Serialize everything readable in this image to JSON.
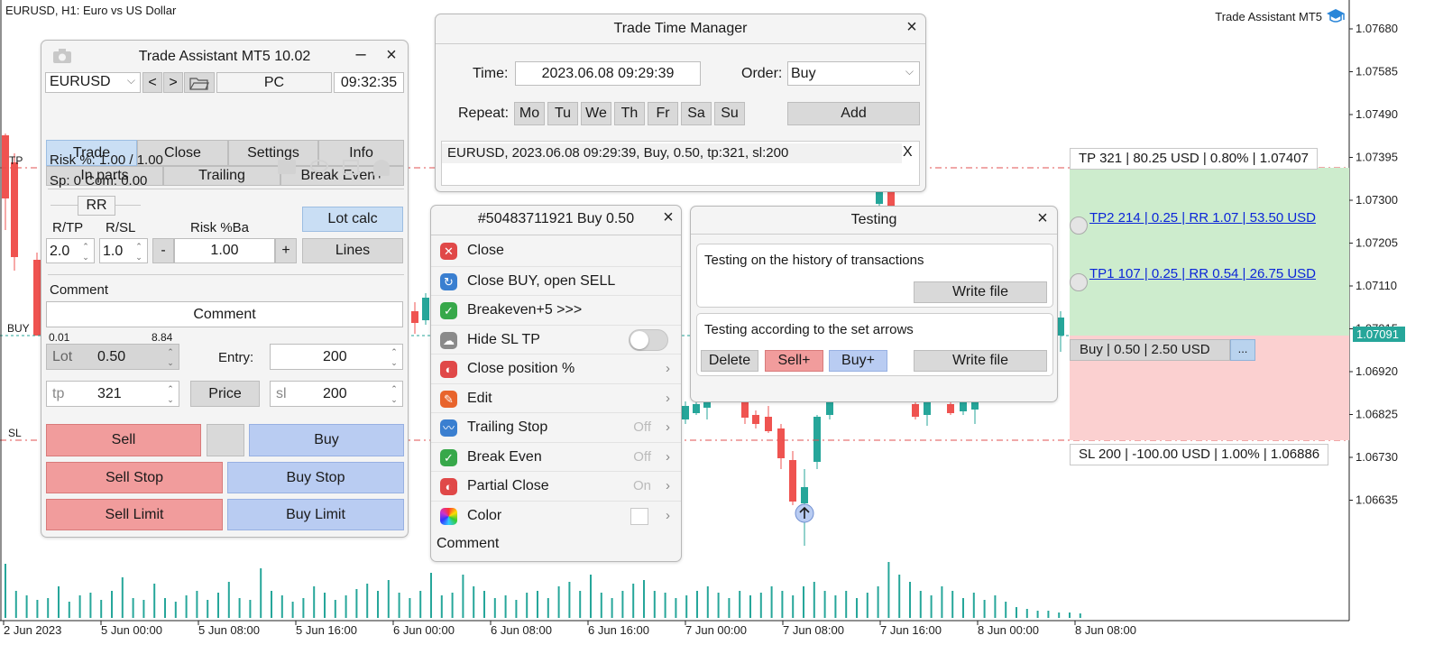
{
  "chart": {
    "symbol_title": "EURUSD, H1:  Euro vs US Dollar",
    "brand": "Trade Assistant MT5",
    "current_price": "1.07091",
    "tp_marker": "TP",
    "buy_marker": "BUY",
    "sl_marker": "SL",
    "price_labels": [
      "1.07680",
      "1.07585",
      "1.07490",
      "1.07395",
      "1.07300",
      "1.07205",
      "1.07110",
      "1.07015",
      "1.06920",
      "1.06825",
      "1.06730",
      "1.06635"
    ],
    "time_labels": [
      "2 Jun 2023",
      "5 Jun 00:00",
      "5 Jun 08:00",
      "5 Jun 16:00",
      "6 Jun 00:00",
      "6 Jun 08:00",
      "6 Jun 16:00",
      "7 Jun 00:00",
      "7 Jun 08:00",
      "7 Jun 16:00",
      "8 Jun 00:00",
      "8 Jun 08:00"
    ],
    "tp_label": "TP 321 | 80.25 USD | 0.80% | 1.07407",
    "tp2_label": "TP2 214 | 0.25 | RR 1.07 | 53.50 USD",
    "tp1_label": "TP1 107 | 0.25 | RR 0.54 | 26.75 USD",
    "buy_label": "Buy | 0.50 | 2.50 USD",
    "more_label": "...",
    "sl_label": "SL 200 | -100.00 USD | 1.00% | 1.06886",
    "colors": {
      "bull": "#26a69a",
      "bear": "#ef5350",
      "level": "#e05050",
      "buy_line": "#26a69a"
    }
  },
  "trade_assistant": {
    "title": "Trade Assistant MT5 10.02",
    "minimize": "–",
    "close": "×",
    "symbol": "EURUSD",
    "prev": "<",
    "next": ">",
    "pc": "PC",
    "time": "09:32:35",
    "tabs": [
      "Trade",
      "Close",
      "Settings",
      "Info"
    ],
    "subtabs": [
      "In parts",
      "Trailing",
      "Break Even+"
    ],
    "risk": "Risk %: 1.00 /  1.00",
    "spread": "Sp: 0  Com: 0.00",
    "rr_label": "RR",
    "rtp_label": "R/TP",
    "rsl_label": "R/SL",
    "risk_ba_label": "Risk %Ba",
    "rtp_value": "2.0",
    "rsl_value": "1.0",
    "minus": "-",
    "risk_value": "1.00",
    "plus": "+",
    "lot_calc": "Lot calc",
    "lines": "Lines",
    "comment_label": "Comment",
    "comment_value": "Comment",
    "lot_min": "0.01",
    "lot_max": "8.84",
    "lot_label": "Lot",
    "lot_value": "0.50",
    "entry_label": "Entry:",
    "entry_value": "200",
    "tp_label": "tp",
    "tp_value": "321",
    "price_btn": "Price",
    "sl_label": "sl",
    "sl_value": "200",
    "sell": "Sell",
    "buy": "Buy",
    "sell_stop": "Sell Stop",
    "buy_stop": "Buy Stop",
    "sell_limit": "Sell Limit",
    "buy_limit": "Buy Limit"
  },
  "ttm": {
    "title": "Trade Time Manager",
    "close": "×",
    "time_label": "Time:",
    "time_value": "2023.06.08 09:29:39",
    "order_label": "Order:",
    "order_value": "Buy",
    "repeat_label": "Repeat:",
    "days": [
      "Mo",
      "Tu",
      "We",
      "Th",
      "Fr",
      "Sa",
      "Su"
    ],
    "add": "Add",
    "entry": "EURUSD, 2023.06.08 09:29:39, Buy, 0.50, tp:321, sl:200",
    "entry_delete": "X"
  },
  "order_menu": {
    "title": "#50483711921 Buy 0.50",
    "close": "×",
    "items": [
      {
        "label": "Close",
        "value": "",
        "icon": "close-x-icon",
        "color": "#e04848",
        "glyph": "✕"
      },
      {
        "label": "Close BUY, open SELL",
        "value": "",
        "icon": "reverse-icon",
        "color": "#3a7fd0",
        "glyph": "↻"
      },
      {
        "label": "Breakeven+5 >>>",
        "value": "",
        "icon": "shield-icon",
        "color": "#37a84a",
        "glyph": "✓"
      },
      {
        "label": "Hide SL TP",
        "value": "",
        "icon": "cloud-icon",
        "color": "#8a8a8a",
        "glyph": "☁"
      },
      {
        "label": "Close position %",
        "value": "",
        "icon": "percent-icon",
        "color": "#e04848",
        "glyph": "◐"
      },
      {
        "label": "Edit",
        "value": "",
        "icon": "wrench-icon",
        "color": "#e8642c",
        "glyph": "✎"
      },
      {
        "label": "Trailing Stop",
        "value": "Off",
        "icon": "trailing-icon",
        "color": "#3a7fd0",
        "glyph": "〰"
      },
      {
        "label": "Break Even",
        "value": "Off",
        "icon": "shield-icon",
        "color": "#37a84a",
        "glyph": "✓"
      },
      {
        "label": "Partial Close",
        "value": "On",
        "icon": "partial-icon",
        "color": "#e04848",
        "glyph": "◐"
      },
      {
        "label": "Color",
        "value": "",
        "icon": "color-wheel-icon",
        "color": "#d040c0",
        "glyph": "●"
      }
    ],
    "comment": "Comment"
  },
  "testing": {
    "title": "Testing",
    "close": "×",
    "history_label": "Testing on the history of transactions",
    "write_file": "Write file",
    "arrows_label": "Testing according to the set arrows",
    "delete": "Delete",
    "sell_plus": "Sell+",
    "buy_plus": "Buy+",
    "write_file2": "Write file"
  }
}
